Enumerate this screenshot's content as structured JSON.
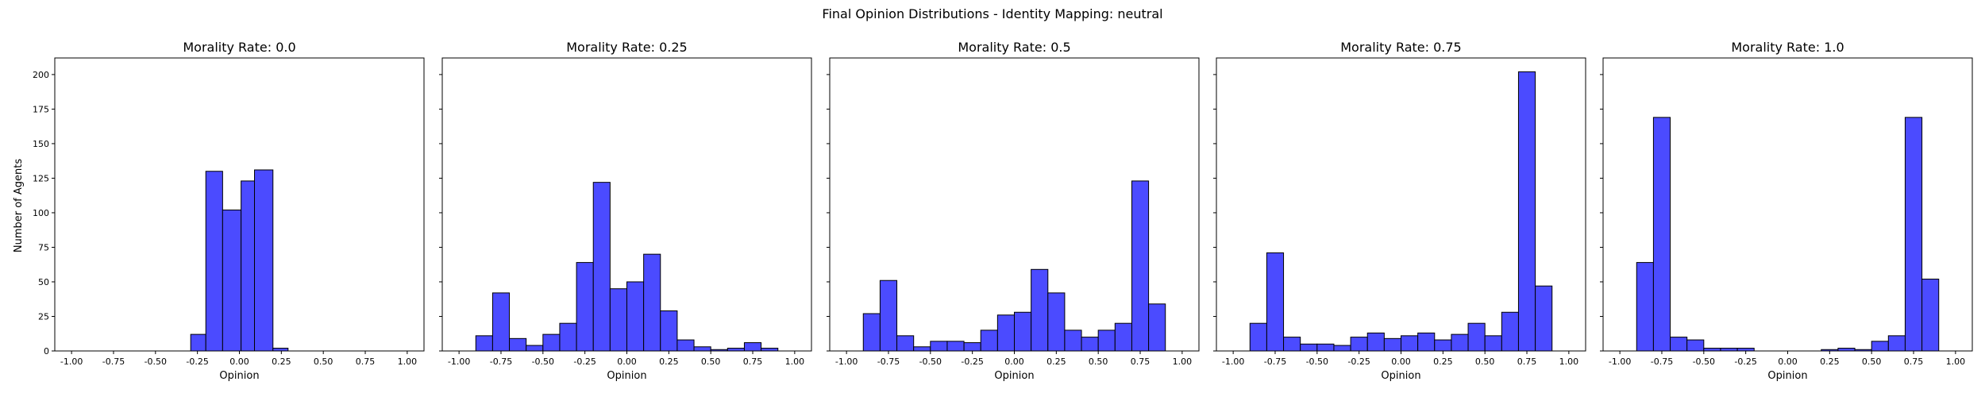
{
  "figure": {
    "suptitle": "Final Opinion Distributions - Identity Mapping: neutral",
    "ylabel": "Number of Agents",
    "bar_color": "#4b4bff",
    "bar_edge_color": "#000000"
  },
  "chart_data": [
    {
      "type": "bar",
      "title": "Morality Rate: 0.0",
      "xlabel": "Opinion",
      "ylabel": "Number of Agents",
      "xlim": [
        -1.1,
        1.1
      ],
      "ylim": [
        0,
        212
      ],
      "xticks": [
        "-1.00",
        "-0.75",
        "-0.50",
        "-0.25",
        "0.00",
        "0.25",
        "0.50",
        "0.75",
        "1.00"
      ],
      "yticks": [
        "0",
        "25",
        "50",
        "75",
        "100",
        "125",
        "150",
        "175",
        "200"
      ],
      "bin_width": 0.0833,
      "bins": [
        {
          "x0": -0.29,
          "x1": -0.2,
          "count": 12
        },
        {
          "x0": -0.2,
          "x1": -0.1,
          "count": 130
        },
        {
          "x0": -0.1,
          "x1": 0.01,
          "count": 102
        },
        {
          "x0": 0.01,
          "x1": 0.09,
          "count": 123
        },
        {
          "x0": 0.09,
          "x1": 0.2,
          "count": 131
        },
        {
          "x0": 0.2,
          "x1": 0.29,
          "count": 2
        }
      ]
    },
    {
      "type": "bar",
      "title": "Morality Rate: 0.25",
      "xlabel": "Opinion",
      "xlim": [
        -1.1,
        1.1
      ],
      "ylim": [
        0,
        212
      ],
      "xticks": [
        "-1.00",
        "-0.75",
        "-0.50",
        "-0.25",
        "0.00",
        "0.25",
        "0.50",
        "0.75",
        "1.00"
      ],
      "bins": [
        {
          "x0": -0.9,
          "x1": -0.8,
          "count": 11
        },
        {
          "x0": -0.8,
          "x1": -0.7,
          "count": 42
        },
        {
          "x0": -0.7,
          "x1": -0.6,
          "count": 9
        },
        {
          "x0": -0.6,
          "x1": -0.5,
          "count": 4
        },
        {
          "x0": -0.5,
          "x1": -0.4,
          "count": 12
        },
        {
          "x0": -0.4,
          "x1": -0.3,
          "count": 20
        },
        {
          "x0": -0.3,
          "x1": -0.2,
          "count": 64
        },
        {
          "x0": -0.2,
          "x1": -0.1,
          "count": 122
        },
        {
          "x0": -0.1,
          "x1": 0.0,
          "count": 45
        },
        {
          "x0": 0.0,
          "x1": 0.1,
          "count": 50
        },
        {
          "x0": 0.1,
          "x1": 0.2,
          "count": 70
        },
        {
          "x0": 0.2,
          "x1": 0.3,
          "count": 29
        },
        {
          "x0": 0.3,
          "x1": 0.4,
          "count": 8
        },
        {
          "x0": 0.4,
          "x1": 0.5,
          "count": 3
        },
        {
          "x0": 0.5,
          "x1": 0.6,
          "count": 1
        },
        {
          "x0": 0.6,
          "x1": 0.7,
          "count": 2
        },
        {
          "x0": 0.7,
          "x1": 0.8,
          "count": 6
        },
        {
          "x0": 0.8,
          "x1": 0.9,
          "count": 2
        }
      ]
    },
    {
      "type": "bar",
      "title": "Morality Rate: 0.5",
      "xlabel": "Opinion",
      "xlim": [
        -1.1,
        1.1
      ],
      "ylim": [
        0,
        212
      ],
      "xticks": [
        "-1.00",
        "-0.75",
        "-0.50",
        "-0.25",
        "0.00",
        "0.25",
        "0.50",
        "0.75",
        "1.00"
      ],
      "bins": [
        {
          "x0": -0.9,
          "x1": -0.8,
          "count": 27
        },
        {
          "x0": -0.8,
          "x1": -0.7,
          "count": 51
        },
        {
          "x0": -0.7,
          "x1": -0.6,
          "count": 11
        },
        {
          "x0": -0.6,
          "x1": -0.5,
          "count": 3
        },
        {
          "x0": -0.5,
          "x1": -0.4,
          "count": 7
        },
        {
          "x0": -0.4,
          "x1": -0.3,
          "count": 7
        },
        {
          "x0": -0.3,
          "x1": -0.2,
          "count": 6
        },
        {
          "x0": -0.2,
          "x1": -0.1,
          "count": 15
        },
        {
          "x0": -0.1,
          "x1": 0.0,
          "count": 26
        },
        {
          "x0": 0.0,
          "x1": 0.1,
          "count": 28
        },
        {
          "x0": 0.1,
          "x1": 0.2,
          "count": 59
        },
        {
          "x0": 0.2,
          "x1": 0.3,
          "count": 42
        },
        {
          "x0": 0.3,
          "x1": 0.4,
          "count": 15
        },
        {
          "x0": 0.4,
          "x1": 0.5,
          "count": 10
        },
        {
          "x0": 0.5,
          "x1": 0.6,
          "count": 15
        },
        {
          "x0": 0.6,
          "x1": 0.7,
          "count": 20
        },
        {
          "x0": 0.7,
          "x1": 0.8,
          "count": 123
        },
        {
          "x0": 0.8,
          "x1": 0.9,
          "count": 34
        }
      ]
    },
    {
      "type": "bar",
      "title": "Morality Rate: 0.75",
      "xlabel": "Opinion",
      "xlim": [
        -1.1,
        1.1
      ],
      "ylim": [
        0,
        212
      ],
      "xticks": [
        "-1.00",
        "-0.75",
        "-0.50",
        "-0.25",
        "0.00",
        "0.25",
        "0.50",
        "0.75",
        "1.00"
      ],
      "bins": [
        {
          "x0": -0.9,
          "x1": -0.8,
          "count": 20
        },
        {
          "x0": -0.8,
          "x1": -0.7,
          "count": 71
        },
        {
          "x0": -0.7,
          "x1": -0.6,
          "count": 10
        },
        {
          "x0": -0.6,
          "x1": -0.5,
          "count": 5
        },
        {
          "x0": -0.5,
          "x1": -0.4,
          "count": 5
        },
        {
          "x0": -0.4,
          "x1": -0.3,
          "count": 4
        },
        {
          "x0": -0.3,
          "x1": -0.2,
          "count": 10
        },
        {
          "x0": -0.2,
          "x1": -0.1,
          "count": 13
        },
        {
          "x0": -0.1,
          "x1": 0.0,
          "count": 9
        },
        {
          "x0": 0.0,
          "x1": 0.1,
          "count": 11
        },
        {
          "x0": 0.1,
          "x1": 0.2,
          "count": 13
        },
        {
          "x0": 0.2,
          "x1": 0.3,
          "count": 8
        },
        {
          "x0": 0.3,
          "x1": 0.4,
          "count": 12
        },
        {
          "x0": 0.4,
          "x1": 0.5,
          "count": 20
        },
        {
          "x0": 0.5,
          "x1": 0.6,
          "count": 11
        },
        {
          "x0": 0.6,
          "x1": 0.7,
          "count": 28
        },
        {
          "x0": 0.7,
          "x1": 0.8,
          "count": 202
        },
        {
          "x0": 0.8,
          "x1": 0.9,
          "count": 47
        }
      ]
    },
    {
      "type": "bar",
      "title": "Morality Rate: 1.0",
      "xlabel": "Opinion",
      "xlim": [
        -1.1,
        1.1
      ],
      "ylim": [
        0,
        212
      ],
      "xticks": [
        "-1.00",
        "-0.75",
        "-0.50",
        "-0.25",
        "0.00",
        "0.25",
        "0.50",
        "0.75",
        "1.00"
      ],
      "bins": [
        {
          "x0": -0.9,
          "x1": -0.8,
          "count": 64
        },
        {
          "x0": -0.8,
          "x1": -0.7,
          "count": 169
        },
        {
          "x0": -0.7,
          "x1": -0.6,
          "count": 10
        },
        {
          "x0": -0.6,
          "x1": -0.5,
          "count": 8
        },
        {
          "x0": -0.5,
          "x1": -0.4,
          "count": 2
        },
        {
          "x0": -0.4,
          "x1": -0.3,
          "count": 2
        },
        {
          "x0": -0.3,
          "x1": -0.2,
          "count": 2
        },
        {
          "x0": 0.2,
          "x1": 0.3,
          "count": 1
        },
        {
          "x0": 0.3,
          "x1": 0.4,
          "count": 2
        },
        {
          "x0": 0.4,
          "x1": 0.5,
          "count": 1
        },
        {
          "x0": 0.5,
          "x1": 0.6,
          "count": 7
        },
        {
          "x0": 0.6,
          "x1": 0.7,
          "count": 11
        },
        {
          "x0": 0.7,
          "x1": 0.8,
          "count": 169
        },
        {
          "x0": 0.8,
          "x1": 0.9,
          "count": 52
        }
      ]
    }
  ]
}
